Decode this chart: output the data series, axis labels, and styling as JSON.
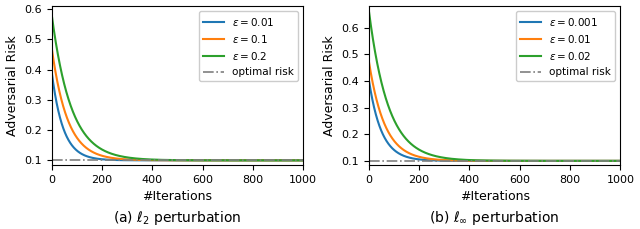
{
  "optimal_risk": 0.1,
  "xlim": [
    0,
    1000
  ],
  "left_ylim": [
    0.085,
    0.61
  ],
  "right_ylim": [
    0.085,
    0.68
  ],
  "left_yticks": [
    0.1,
    0.2,
    0.3,
    0.4,
    0.5,
    0.6
  ],
  "right_yticks": [
    0.1,
    0.2,
    0.3,
    0.4,
    0.5,
    0.6
  ],
  "xlabel": "#Iterations",
  "ylabel": "Adversarial Risk",
  "left_caption": "(a) $\\ell_2$ perturbation",
  "right_caption": "(b) $\\ell_\\infty$ perturbation",
  "left_curves": [
    {
      "label": "$\\varepsilon = 0.01$",
      "color": "#1f77b4",
      "init": 0.395,
      "decay": 0.022
    },
    {
      "label": "$\\varepsilon = 0.1$",
      "color": "#ff7f0e",
      "init": 0.475,
      "decay": 0.016
    },
    {
      "label": "$\\varepsilon = 0.2$",
      "color": "#2ca02c",
      "init": 0.585,
      "decay": 0.013
    }
  ],
  "right_curves": [
    {
      "label": "$\\varepsilon = 0.001$",
      "color": "#1f77b4",
      "init": 0.405,
      "decay": 0.02
    },
    {
      "label": "$\\varepsilon = 0.01$",
      "color": "#ff7f0e",
      "init": 0.475,
      "decay": 0.016
    },
    {
      "label": "$\\varepsilon = 0.02$",
      "color": "#2ca02c",
      "init": 0.665,
      "decay": 0.013
    }
  ],
  "optimal_risk_label": "optimal risk",
  "optimal_risk_color": "#7f7f7f",
  "background": "#ffffff"
}
